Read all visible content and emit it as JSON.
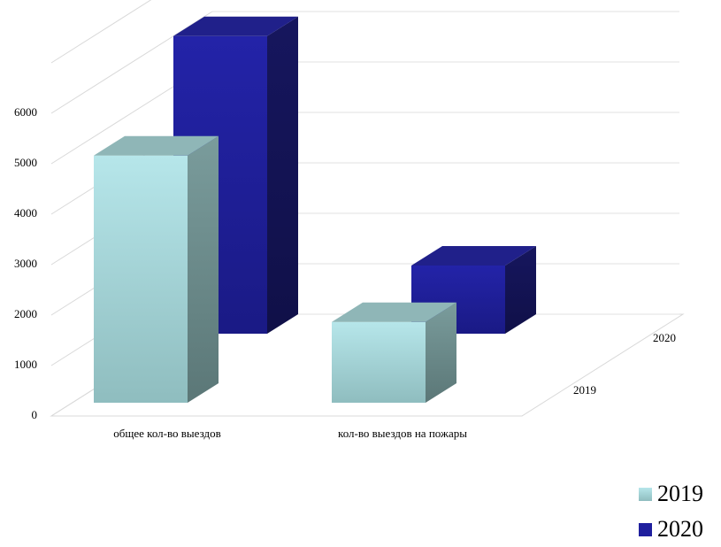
{
  "chart_data": {
    "type": "bar",
    "categories": [
      "общее кол-во выездов",
      "кол-во выездов на пожары"
    ],
    "series": [
      {
        "name": "2019",
        "values": [
          4900,
          1600
        ],
        "color": "#b2e3e8"
      },
      {
        "name": "2020",
        "values": [
          5900,
          1350
        ],
        "color": "#1f1f9e"
      }
    ],
    "depth_labels": [
      "2019",
      "2020"
    ],
    "ylim": [
      0,
      6000
    ],
    "yticks": [
      "0",
      "1000",
      "2000",
      "3000",
      "4000",
      "5000",
      "6000"
    ],
    "grid": true,
    "legend": "bottom-right",
    "projection": "3d"
  }
}
